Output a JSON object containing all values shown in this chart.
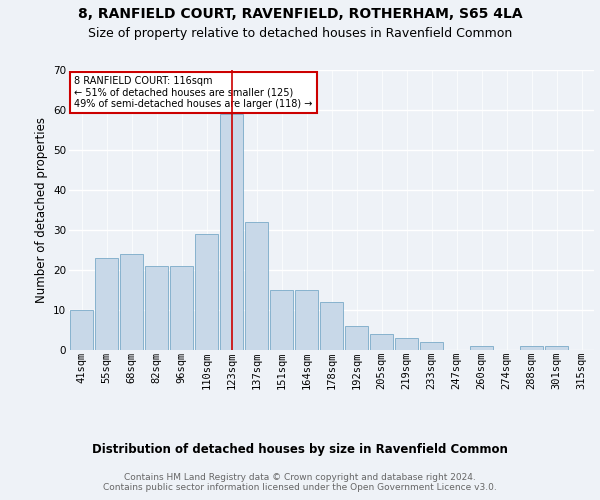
{
  "title1": "8, RANFIELD COURT, RAVENFIELD, ROTHERHAM, S65 4LA",
  "title2": "Size of property relative to detached houses in Ravenfield Common",
  "xlabel": "Distribution of detached houses by size in Ravenfield Common",
  "ylabel": "Number of detached properties",
  "categories": [
    "41sqm",
    "55sqm",
    "68sqm",
    "82sqm",
    "96sqm",
    "110sqm",
    "123sqm",
    "137sqm",
    "151sqm",
    "164sqm",
    "178sqm",
    "192sqm",
    "205sqm",
    "219sqm",
    "233sqm",
    "247sqm",
    "260sqm",
    "274sqm",
    "288sqm",
    "301sqm",
    "315sqm"
  ],
  "values": [
    10,
    23,
    24,
    21,
    21,
    29,
    59,
    32,
    15,
    15,
    12,
    6,
    4,
    3,
    2,
    0,
    1,
    0,
    1,
    1,
    0
  ],
  "bar_color": "#c8d8e8",
  "bar_edge_color": "#7aaac8",
  "highlight_index": 6,
  "highlight_color": "#cc0000",
  "annotation_text": "8 RANFIELD COURT: 116sqm\n← 51% of detached houses are smaller (125)\n49% of semi-detached houses are larger (118) →",
  "annotation_box_color": "#ffffff",
  "annotation_box_edge": "#cc0000",
  "ylim": [
    0,
    70
  ],
  "yticks": [
    0,
    10,
    20,
    30,
    40,
    50,
    60,
    70
  ],
  "footer": "Contains HM Land Registry data © Crown copyright and database right 2024.\nContains public sector information licensed under the Open Government Licence v3.0.",
  "bg_color": "#eef2f7",
  "plot_bg_color": "#eef2f7",
  "grid_color": "#ffffff",
  "title_fontsize": 10,
  "subtitle_fontsize": 9,
  "axis_label_fontsize": 8.5,
  "tick_fontsize": 7.5,
  "footer_fontsize": 6.5
}
